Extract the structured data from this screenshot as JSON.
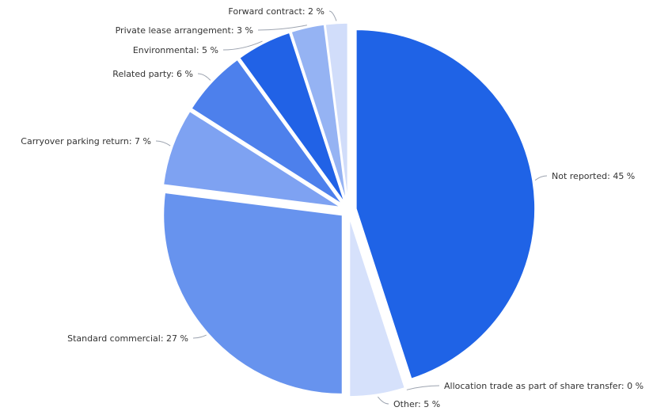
{
  "chart_data": {
    "type": "pie",
    "title": "",
    "value_suffix": " %",
    "slices": [
      {
        "label": "Not reported",
        "value": 45,
        "color": "#1f63e6"
      },
      {
        "label": "Allocation trade as part of share transfer",
        "value": 0,
        "color": "#1f63e6"
      },
      {
        "label": "Other",
        "value": 5,
        "color": "#d6e1fb"
      },
      {
        "label": "Standard commercial",
        "value": 27,
        "color": "#6793ee"
      },
      {
        "label": "Carryover parking return",
        "value": 7,
        "color": "#7ea2f2"
      },
      {
        "label": "Related party",
        "value": 6,
        "color": "#4d80ec"
      },
      {
        "label": "Environmental",
        "value": 5,
        "color": "#2162e6"
      },
      {
        "label": "Private lease arrangement",
        "value": 3,
        "color": "#95b3f3"
      },
      {
        "label": "Forward contract",
        "value": 2,
        "color": "#d1ddfa"
      }
    ]
  }
}
